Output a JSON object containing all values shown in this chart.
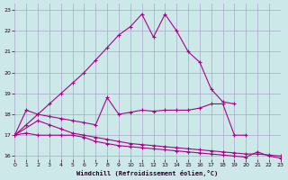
{
  "background_color": "#cce8e8",
  "grid_color": "#aaaacc",
  "line_color": "#aa0088",
  "xlabel": "Windchill (Refroidissement éolien,°C)",
  "xlim": [
    0,
    23
  ],
  "ylim": [
    15.85,
    23.3
  ],
  "yticks": [
    16,
    17,
    18,
    19,
    20,
    21,
    22,
    23
  ],
  "xticks": [
    0,
    1,
    2,
    3,
    4,
    5,
    6,
    7,
    8,
    9,
    10,
    11,
    12,
    13,
    14,
    15,
    16,
    17,
    18,
    19,
    20,
    21,
    22,
    23
  ],
  "series": [
    {
      "x": [
        0,
        1,
        2,
        3,
        4,
        5,
        6,
        7,
        8,
        9,
        10,
        11,
        12,
        13,
        14,
        15,
        16,
        17,
        18,
        19
      ],
      "y": [
        17.0,
        17.5,
        18.0,
        18.5,
        19.0,
        19.5,
        20.0,
        20.6,
        21.2,
        21.8,
        22.2,
        22.8,
        21.7,
        22.8,
        22.0,
        21.0,
        20.5,
        19.2,
        18.6,
        18.5
      ]
    },
    {
      "x": [
        0,
        1,
        2,
        3,
        4,
        5,
        6,
        7,
        8,
        9,
        10,
        11,
        12,
        13,
        14,
        15,
        16,
        17,
        18,
        19,
        20
      ],
      "y": [
        17.0,
        18.2,
        18.0,
        17.9,
        17.8,
        17.7,
        17.6,
        17.5,
        18.8,
        18.0,
        18.1,
        18.2,
        18.15,
        18.2,
        18.2,
        18.2,
        18.3,
        18.5,
        18.5,
        17.0,
        17.0
      ]
    },
    {
      "x": [
        0,
        2,
        3,
        4,
        5,
        6,
        7,
        8,
        9,
        10,
        11,
        12,
        13,
        14,
        15,
        16,
        17,
        18,
        19,
        20,
        21,
        22,
        23
      ],
      "y": [
        17.0,
        17.7,
        17.5,
        17.3,
        17.1,
        17.0,
        16.9,
        16.8,
        16.7,
        16.6,
        16.55,
        16.5,
        16.45,
        16.4,
        16.35,
        16.3,
        16.25,
        16.2,
        16.15,
        16.1,
        16.1,
        16.05,
        16.0
      ]
    },
    {
      "x": [
        0,
        1,
        2,
        3,
        4,
        5,
        6,
        7,
        8,
        9,
        10,
        11,
        12,
        13,
        14,
        15,
        16,
        17,
        18,
        19,
        20,
        21,
        22,
        23
      ],
      "y": [
        17.0,
        17.1,
        17.0,
        17.0,
        17.0,
        17.0,
        16.9,
        16.7,
        16.6,
        16.5,
        16.45,
        16.4,
        16.35,
        16.3,
        16.25,
        16.2,
        16.15,
        16.1,
        16.05,
        16.0,
        15.95,
        16.2,
        16.0,
        15.9
      ]
    }
  ]
}
